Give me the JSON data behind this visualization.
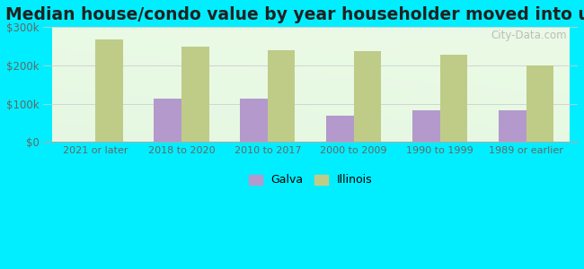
{
  "title": "Median house/condo value by year householder moved into unit",
  "categories": [
    "2021 or later",
    "2018 to 2020",
    "2010 to 2017",
    "2000 to 2009",
    "1990 to 1999",
    "1989 or earlier"
  ],
  "galva_values": [
    0,
    113000,
    113000,
    70000,
    82000,
    82000
  ],
  "illinois_values": [
    268000,
    250000,
    240000,
    238000,
    228000,
    200000
  ],
  "galva_color": "#b399cc",
  "illinois_color": "#bfcc88",
  "background_outer": "#00eeff",
  "ylim": [
    0,
    300000
  ],
  "yticks": [
    0,
    100000,
    200000,
    300000
  ],
  "ytick_labels": [
    "$0",
    "$100k",
    "$200k",
    "$300k"
  ],
  "bar_width": 0.32,
  "grid_color": "#cccccc",
  "watermark": "City-Data.com",
  "legend_galva": "Galva",
  "legend_illinois": "Illinois",
  "title_fontsize": 13.5,
  "bg_top_color": "#e8f5e0",
  "bg_bottom_color": "#d0ecd8"
}
